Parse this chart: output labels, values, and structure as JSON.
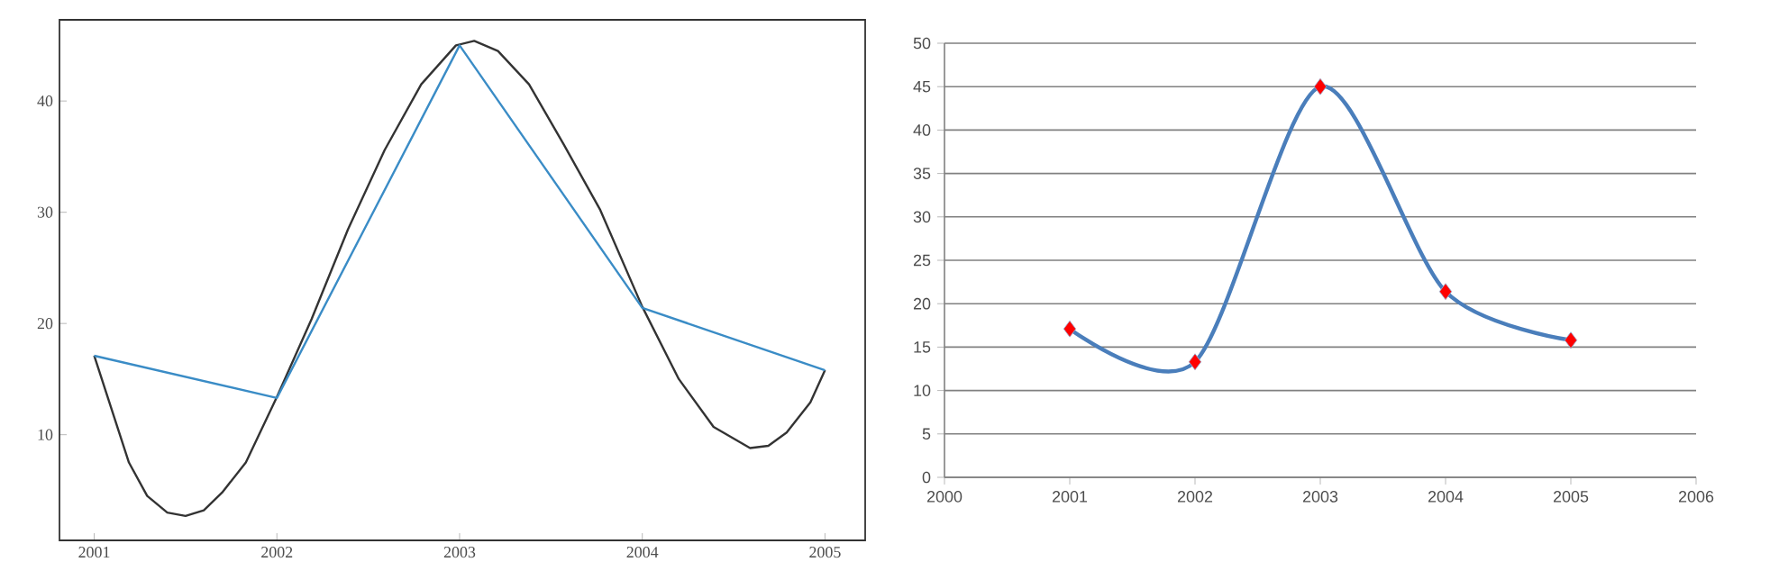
{
  "chart_data": [
    {
      "type": "line",
      "xlim": [
        2000.81,
        2005.22
      ],
      "ylim": [
        0.5,
        47.3
      ],
      "xticks": [
        2001,
        2002,
        2003,
        2004,
        2005
      ],
      "yticks": [
        10,
        20,
        30,
        40
      ],
      "grid": false,
      "marker": "none",
      "series": [
        {
          "color": "#333333",
          "x": [
            2001,
            2001.19,
            2001.29,
            2001.4,
            2001.5,
            2001.6,
            2001.7,
            2001.83,
            2002,
            2002.19,
            2002.39,
            2002.59,
            2002.79,
            2002.98,
            2003.08,
            2003.21,
            2003.38,
            2003.57,
            2003.77,
            2004,
            2004.2,
            2004.39,
            2004.59,
            2004.69,
            2004.79,
            2004.92,
            2005
          ],
          "values": [
            17.1,
            7.5,
            4.5,
            3.0,
            2.7,
            3.2,
            4.8,
            7.5,
            13.4,
            20.4,
            28.5,
            35.6,
            41.5,
            45,
            45.4,
            44.5,
            41.5,
            36.1,
            30.2,
            21.5,
            15.0,
            10.7,
            8.8,
            9.0,
            10.2,
            12.9,
            15.8
          ]
        },
        {
          "color": "#3a8cc6",
          "x": [
            2001,
            2002,
            2003,
            2004,
            2005
          ],
          "values": [
            17.1,
            13.3,
            45,
            21.4,
            15.8
          ]
        }
      ]
    },
    {
      "type": "line",
      "xlim": [
        2000,
        2006
      ],
      "ylim": [
        0,
        50
      ],
      "xticks": [
        2000,
        2001,
        2002,
        2003,
        2004,
        2005,
        2006
      ],
      "yticks": [
        0,
        5,
        10,
        15,
        20,
        25,
        30,
        35,
        40,
        45,
        50
      ],
      "grid": "y",
      "marker": "diamond",
      "series": [
        {
          "color": "#4a7ebb",
          "colors": [
            "#ff0000",
            "#ff0000",
            "#ff0000",
            "#ff0000",
            "#ff0000"
          ],
          "x": [
            2001,
            2002,
            2003,
            2004,
            2005
          ],
          "values": [
            17.1,
            13.3,
            45,
            21.4,
            15.8
          ]
        }
      ]
    }
  ]
}
